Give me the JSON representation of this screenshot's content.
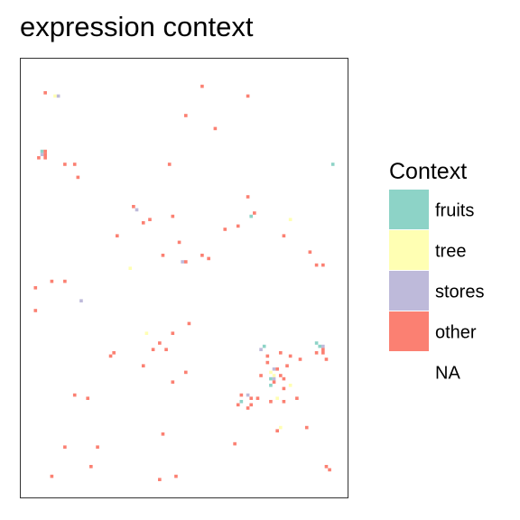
{
  "chart_data": {
    "type": "heatmap",
    "title": "expression context",
    "xlabel": "",
    "ylabel": "",
    "grid": false,
    "axes_visible": false,
    "xlim": [
      0,
      100
    ],
    "ylim": [
      0,
      135
    ],
    "legend": {
      "title": "Context",
      "placement": "right",
      "entries": [
        {
          "label": "fruits",
          "color": "#8DD3C7"
        },
        {
          "label": "tree",
          "color": "#FFFFB3"
        },
        {
          "label": "stores",
          "color": "#BEBADA"
        },
        {
          "label": "other",
          "color": "#FB8072"
        },
        {
          "label": "NA",
          "color": "#FFFFFF"
        }
      ]
    },
    "cells": [
      {
        "x": 7,
        "y": 124,
        "context": "other"
      },
      {
        "x": 10,
        "y": 123,
        "context": "tree"
      },
      {
        "x": 11,
        "y": 123,
        "context": "stores"
      },
      {
        "x": 55,
        "y": 126,
        "context": "other"
      },
      {
        "x": 69,
        "y": 123,
        "context": "other"
      },
      {
        "x": 50,
        "y": 117,
        "context": "other"
      },
      {
        "x": 59,
        "y": 113,
        "context": "other"
      },
      {
        "x": 6,
        "y": 106,
        "context": "fruits"
      },
      {
        "x": 6,
        "y": 105,
        "context": "stores"
      },
      {
        "x": 7,
        "y": 106,
        "context": "other"
      },
      {
        "x": 7,
        "y": 105,
        "context": "other"
      },
      {
        "x": 5,
        "y": 104,
        "context": "other"
      },
      {
        "x": 7,
        "y": 104,
        "context": "other"
      },
      {
        "x": 13,
        "y": 102,
        "context": "other"
      },
      {
        "x": 16,
        "y": 102,
        "context": "other"
      },
      {
        "x": 45,
        "y": 102,
        "context": "other"
      },
      {
        "x": 95,
        "y": 102,
        "context": "fruits"
      },
      {
        "x": 17,
        "y": 98,
        "context": "other"
      },
      {
        "x": 69,
        "y": 92,
        "context": "other"
      },
      {
        "x": 34,
        "y": 89,
        "context": "other"
      },
      {
        "x": 35,
        "y": 88,
        "context": "stores"
      },
      {
        "x": 46,
        "y": 86,
        "context": "other"
      },
      {
        "x": 71,
        "y": 87,
        "context": "other"
      },
      {
        "x": 70,
        "y": 86,
        "context": "fruits"
      },
      {
        "x": 82,
        "y": 85,
        "context": "tree"
      },
      {
        "x": 39,
        "y": 85,
        "context": "other"
      },
      {
        "x": 37,
        "y": 84,
        "context": "other"
      },
      {
        "x": 62,
        "y": 82,
        "context": "other"
      },
      {
        "x": 66,
        "y": 83,
        "context": "other"
      },
      {
        "x": 80,
        "y": 80,
        "context": "other"
      },
      {
        "x": 29,
        "y": 80,
        "context": "other"
      },
      {
        "x": 48,
        "y": 78,
        "context": "other"
      },
      {
        "x": 55,
        "y": 74,
        "context": "other"
      },
      {
        "x": 43,
        "y": 74,
        "context": "other"
      },
      {
        "x": 88,
        "y": 75,
        "context": "other"
      },
      {
        "x": 49,
        "y": 72,
        "context": "stores"
      },
      {
        "x": 50,
        "y": 72,
        "context": "other"
      },
      {
        "x": 57,
        "y": 73,
        "context": "other"
      },
      {
        "x": 90,
        "y": 71,
        "context": "other"
      },
      {
        "x": 92,
        "y": 71,
        "context": "other"
      },
      {
        "x": 33,
        "y": 70,
        "context": "tree"
      },
      {
        "x": 9,
        "y": 66,
        "context": "other"
      },
      {
        "x": 13,
        "y": 66,
        "context": "other"
      },
      {
        "x": 4,
        "y": 64,
        "context": "other"
      },
      {
        "x": 18,
        "y": 60,
        "context": "stores"
      },
      {
        "x": 4,
        "y": 57,
        "context": "other"
      },
      {
        "x": 51,
        "y": 53,
        "context": "other"
      },
      {
        "x": 38,
        "y": 50,
        "context": "tree"
      },
      {
        "x": 46,
        "y": 50,
        "context": "other"
      },
      {
        "x": 42,
        "y": 47,
        "context": "other"
      },
      {
        "x": 40,
        "y": 45,
        "context": "other"
      },
      {
        "x": 44,
        "y": 45,
        "context": "other"
      },
      {
        "x": 28,
        "y": 44,
        "context": "other"
      },
      {
        "x": 90,
        "y": 47,
        "context": "fruits"
      },
      {
        "x": 91,
        "y": 46,
        "context": "fruits"
      },
      {
        "x": 92,
        "y": 46,
        "context": "stores"
      },
      {
        "x": 92,
        "y": 45,
        "context": "other"
      },
      {
        "x": 92,
        "y": 44,
        "context": "other"
      },
      {
        "x": 90,
        "y": 44,
        "context": "other"
      },
      {
        "x": 93,
        "y": 42,
        "context": "other"
      },
      {
        "x": 73,
        "y": 45,
        "context": "stores"
      },
      {
        "x": 74,
        "y": 46,
        "context": "fruits"
      },
      {
        "x": 79,
        "y": 44,
        "context": "other"
      },
      {
        "x": 75,
        "y": 43,
        "context": "other"
      },
      {
        "x": 82,
        "y": 43,
        "context": "other"
      },
      {
        "x": 85,
        "y": 42,
        "context": "other"
      },
      {
        "x": 75,
        "y": 41,
        "context": "other"
      },
      {
        "x": 81,
        "y": 40,
        "context": "other"
      },
      {
        "x": 77,
        "y": 39,
        "context": "stores"
      },
      {
        "x": 78,
        "y": 39,
        "context": "other"
      },
      {
        "x": 76,
        "y": 38,
        "context": "tree"
      },
      {
        "x": 77,
        "y": 37,
        "context": "tree"
      },
      {
        "x": 77,
        "y": 36,
        "context": "stores"
      },
      {
        "x": 79,
        "y": 37,
        "context": "other"
      },
      {
        "x": 76,
        "y": 36,
        "context": "fruits"
      },
      {
        "x": 73,
        "y": 37,
        "context": "other"
      },
      {
        "x": 80,
        "y": 36,
        "context": "other"
      },
      {
        "x": 76,
        "y": 34,
        "context": "fruits"
      },
      {
        "x": 77,
        "y": 35,
        "context": "other"
      },
      {
        "x": 82,
        "y": 34,
        "context": "tree"
      },
      {
        "x": 80,
        "y": 33,
        "context": "other"
      },
      {
        "x": 27,
        "y": 43,
        "context": "other"
      },
      {
        "x": 37,
        "y": 40,
        "context": "other"
      },
      {
        "x": 50,
        "y": 38,
        "context": "other"
      },
      {
        "x": 46,
        "y": 35,
        "context": "other"
      },
      {
        "x": 16,
        "y": 31,
        "context": "other"
      },
      {
        "x": 20,
        "y": 30,
        "context": "other"
      },
      {
        "x": 67,
        "y": 31,
        "context": "other"
      },
      {
        "x": 69,
        "y": 31,
        "context": "stores"
      },
      {
        "x": 70,
        "y": 30,
        "context": "other"
      },
      {
        "x": 72,
        "y": 30,
        "context": "other"
      },
      {
        "x": 78,
        "y": 30,
        "context": "tree"
      },
      {
        "x": 84,
        "y": 30,
        "context": "other"
      },
      {
        "x": 67,
        "y": 29,
        "context": "fruits"
      },
      {
        "x": 66,
        "y": 28,
        "context": "other"
      },
      {
        "x": 70,
        "y": 28,
        "context": "other"
      },
      {
        "x": 69,
        "y": 27,
        "context": "other"
      },
      {
        "x": 80,
        "y": 29,
        "context": "other"
      },
      {
        "x": 76,
        "y": 29,
        "context": "other"
      },
      {
        "x": 79,
        "y": 21,
        "context": "tree"
      },
      {
        "x": 78,
        "y": 20,
        "context": "other"
      },
      {
        "x": 87,
        "y": 21,
        "context": "other"
      },
      {
        "x": 43,
        "y": 19,
        "context": "other"
      },
      {
        "x": 65,
        "y": 16,
        "context": "other"
      },
      {
        "x": 13,
        "y": 15,
        "context": "other"
      },
      {
        "x": 23,
        "y": 15,
        "context": "other"
      },
      {
        "x": 21,
        "y": 9,
        "context": "other"
      },
      {
        "x": 9,
        "y": 6,
        "context": "other"
      },
      {
        "x": 47,
        "y": 6,
        "context": "other"
      },
      {
        "x": 93,
        "y": 9,
        "context": "other"
      },
      {
        "x": 94,
        "y": 8,
        "context": "other"
      },
      {
        "x": 42,
        "y": 5,
        "context": "other"
      }
    ]
  }
}
